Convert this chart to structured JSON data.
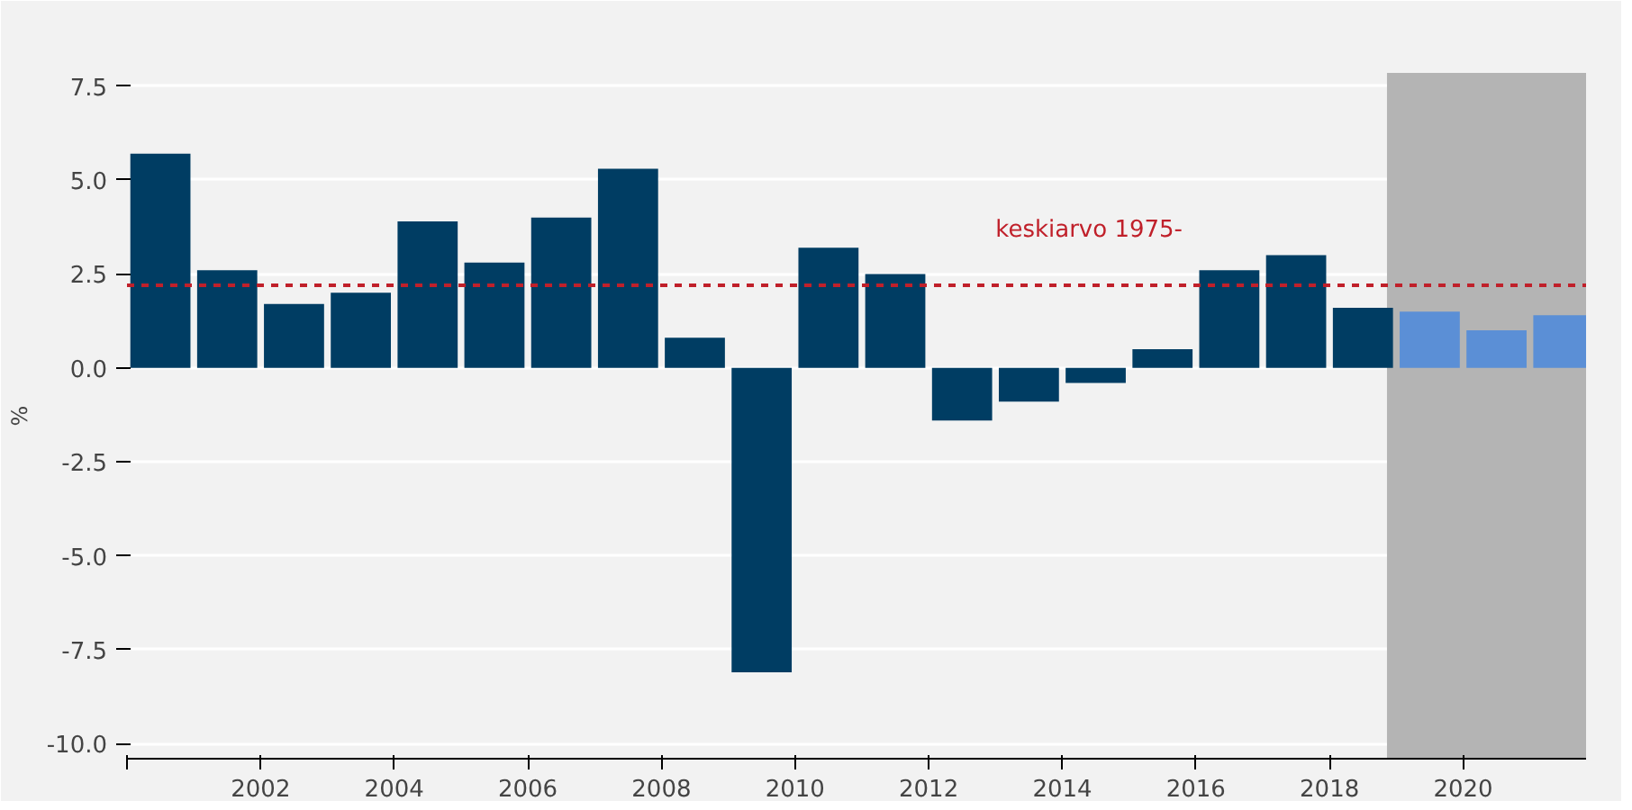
{
  "chart_data": {
    "type": "bar",
    "ylabel": "%",
    "x": [
      2000.5,
      2001.5,
      2002.5,
      2003.5,
      2004.5,
      2005.5,
      2006.5,
      2007.5,
      2008.5,
      2009.5,
      2010.5,
      2011.5,
      2012.5,
      2013.5,
      2014.5,
      2015.5,
      2016.5,
      2017.5,
      2018.5,
      2019.5,
      2020.5,
      2021.5
    ],
    "values": [
      5.7,
      2.6,
      1.7,
      2.0,
      3.9,
      2.8,
      4.0,
      5.3,
      0.8,
      -8.1,
      3.2,
      2.5,
      -1.4,
      -0.9,
      -0.4,
      0.5,
      2.6,
      3.0,
      1.6,
      1.5,
      1.0,
      1.4
    ],
    "colors": [
      "#003d63",
      "#003d63",
      "#003d63",
      "#003d63",
      "#003d63",
      "#003d63",
      "#003d63",
      "#003d63",
      "#003d63",
      "#003d63",
      "#003d63",
      "#003d63",
      "#003d63",
      "#003d63",
      "#003d63",
      "#003d63",
      "#003d63",
      "#003d63",
      "#003d63",
      "#5b8fd6",
      "#5b8fd6",
      "#5b8fd6"
    ],
    "xlim": [
      2000,
      2021.84
    ],
    "xticks": [
      {
        "value": 2000,
        "label": null
      },
      2002,
      2004,
      2006,
      2008,
      2010,
      2012,
      2014,
      2016,
      2018,
      2020
    ],
    "ylim": [
      -10.4,
      7.85
    ],
    "yticks": [
      {
        "value": -10,
        "label": "-10.0"
      },
      {
        "value": -7.5,
        "label": "-7.5"
      },
      {
        "value": -5,
        "label": "-5.0"
      },
      {
        "value": -2.5,
        "label": "-2.5"
      },
      {
        "value": 0,
        "label": "0.0"
      },
      {
        "value": 2.5,
        "label": "2.5"
      },
      {
        "value": 5,
        "label": "5.0"
      },
      {
        "value": 7.5,
        "label": "7.5"
      }
    ],
    "grid": "y",
    "ref_lines": [
      {
        "axis": "y",
        "value": 2.2,
        "label": "keskiarvo 1975-",
        "color": "#c0202a",
        "line_style": "dashed"
      }
    ],
    "bands": [
      {
        "axis": "x",
        "from": 2018.86,
        "to": 2021.84,
        "label": null,
        "color": "#b4b4b4"
      }
    ]
  }
}
